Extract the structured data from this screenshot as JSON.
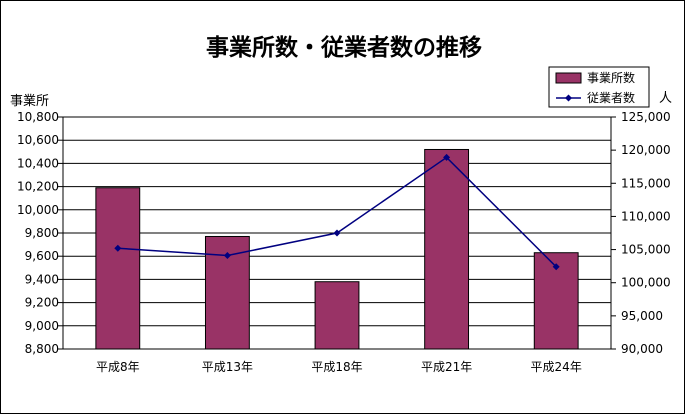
{
  "chart_data": {
    "type": "bar",
    "title": "事業所数・従業者数の推移",
    "categories": [
      "平成8年",
      "平成13年",
      "平成18年",
      "平成21年",
      "平成24年"
    ],
    "series": [
      {
        "name": "事業所数",
        "type": "bar",
        "axis": "left",
        "color": "#993366",
        "values": [
          10190,
          9770,
          9380,
          10520,
          9630
        ]
      },
      {
        "name": "従業者数",
        "type": "line",
        "axis": "right",
        "color": "#000080",
        "values": [
          105200,
          104100,
          107500,
          118900,
          102400
        ]
      }
    ],
    "ylabel_left": "事業所",
    "ylabel_right": "人",
    "ylim_left": [
      8800,
      10800
    ],
    "ylim_right": [
      90000,
      125000
    ],
    "yticks_left": [
      "8,800",
      "9,000",
      "9,200",
      "9,400",
      "9,600",
      "9,800",
      "10,000",
      "10,200",
      "10,400",
      "10,600",
      "10,800"
    ],
    "yticks_right": [
      "90,000",
      "95,000",
      "100,000",
      "105,000",
      "110,000",
      "115,000",
      "120,000",
      "125,000"
    ],
    "grid": true,
    "legend_position": "top-right"
  }
}
